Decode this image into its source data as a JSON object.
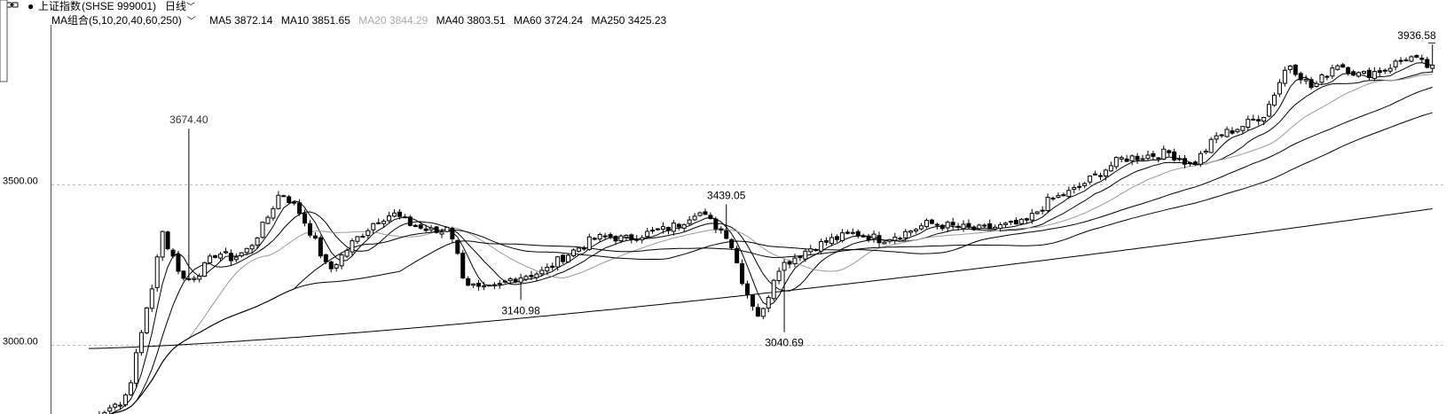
{
  "header": {
    "link_icon": "link-icon",
    "bullet": "●",
    "index_name": "上证指数",
    "index_code": "(SHSE 999001)",
    "period": "日线"
  },
  "ma_bar": {
    "group_label": "MA组合(5,10,20,40,60,250)",
    "items": [
      {
        "label": "MA5 3872.14",
        "color": "#000000"
      },
      {
        "label": "MA10 3851.65",
        "color": "#000000"
      },
      {
        "label": "MA20 3844.29",
        "color": "#aaaaaa"
      },
      {
        "label": "MA40 3803.51",
        "color": "#000000"
      },
      {
        "label": "MA60 3724.24",
        "color": "#000000"
      },
      {
        "label": "MA250 3425.23",
        "color": "#000000"
      }
    ]
  },
  "chart_data": {
    "type": "candlestick",
    "ylim": [
      2786,
      3998
    ],
    "y_ticks": [
      {
        "value": 3500,
        "label": "3500.00"
      },
      {
        "value": 3000,
        "label": "3000.00"
      }
    ],
    "n_bars": 256,
    "annotations": [
      {
        "label": "3674.40",
        "bar": 19,
        "value": 3674.4,
        "kind": "high"
      },
      {
        "label": "3140.98",
        "bar": 82,
        "value": 3140.98,
        "kind": "low"
      },
      {
        "label": "3439.05",
        "bar": 121,
        "value": 3439.05,
        "kind": "high"
      },
      {
        "label": "3040.69",
        "bar": 132,
        "value": 3040.69,
        "kind": "low"
      },
      {
        "label": "3936.58",
        "bar": 255,
        "value": 3936.58,
        "kind": "high"
      }
    ],
    "anchors": [
      [
        0,
        2770
      ],
      [
        10,
        2840
      ],
      [
        12,
        2990
      ],
      [
        16,
        3180
      ],
      [
        18,
        3370
      ],
      [
        20,
        3300
      ],
      [
        22,
        3250
      ],
      [
        24,
        3200
      ],
      [
        28,
        3230
      ],
      [
        32,
        3290
      ],
      [
        36,
        3270
      ],
      [
        40,
        3300
      ],
      [
        44,
        3380
      ],
      [
        48,
        3480
      ],
      [
        52,
        3430
      ],
      [
        56,
        3340
      ],
      [
        60,
        3230
      ],
      [
        66,
        3320
      ],
      [
        72,
        3390
      ],
      [
        76,
        3410
      ],
      [
        80,
        3380
      ],
      [
        84,
        3360
      ],
      [
        88,
        3350
      ],
      [
        90,
        3380
      ],
      [
        94,
        3200
      ],
      [
        98,
        3170
      ],
      [
        102,
        3180
      ],
      [
        106,
        3210
      ],
      [
        110,
        3220
      ],
      [
        114,
        3230
      ],
      [
        118,
        3270
      ],
      [
        122,
        3300
      ],
      [
        126,
        3330
      ],
      [
        130,
        3340
      ],
      [
        134,
        3330
      ],
      [
        140,
        3350
      ],
      [
        144,
        3360
      ],
      [
        148,
        3380
      ],
      [
        152,
        3420
      ],
      [
        156,
        3380
      ],
      [
        160,
        3340
      ],
      [
        164,
        3180
      ],
      [
        168,
        3080
      ],
      [
        172,
        3240
      ],
      [
        176,
        3270
      ],
      [
        180,
        3300
      ],
      [
        186,
        3330
      ],
      [
        192,
        3350
      ],
      [
        198,
        3330
      ],
      [
        204,
        3350
      ],
      [
        210,
        3380
      ],
      [
        216,
        3370
      ],
      [
        222,
        3360
      ],
      [
        228,
        3370
      ],
      [
        234,
        3380
      ],
      [
        240,
        3450
      ],
      [
        246,
        3480
      ],
      [
        252,
        3530
      ],
      [
        258,
        3580
      ],
      [
        264,
        3590
      ],
      [
        270,
        3600
      ],
      [
        276,
        3560
      ],
      [
        282,
        3650
      ],
      [
        288,
        3680
      ],
      [
        294,
        3720
      ],
      [
        300,
        3880
      ],
      [
        306,
        3800
      ],
      [
        312,
        3880
      ],
      [
        318,
        3840
      ],
      [
        324,
        3860
      ],
      [
        330,
        3900
      ],
      [
        336,
        3860
      ]
    ],
    "ma250_points": [
      [
        0,
        2990
      ],
      [
        255,
        3425.23
      ]
    ],
    "ma_latest": {
      "MA5": 3872.14,
      "MA10": 3851.65,
      "MA20": 3844.29,
      "MA40": 3803.51,
      "MA60": 3724.24,
      "MA250": 3425.23
    },
    "grid": "dashed-horizontal",
    "up_color": "#000000",
    "down_color": "#000000",
    "ma_colors": {
      "MA5": "#000000",
      "MA10": "#000000",
      "MA20": "#999999",
      "MA40": "#000000",
      "MA60": "#000000",
      "MA250": "#000000"
    }
  }
}
